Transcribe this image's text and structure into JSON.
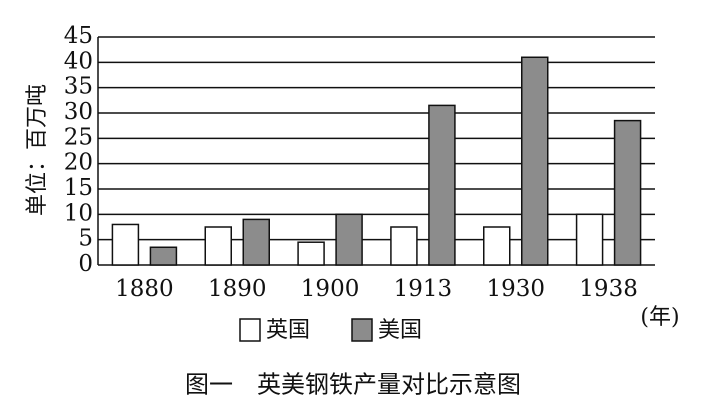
{
  "chart_data": {
    "type": "bar",
    "y_label": "单位：百万吨",
    "x_unit": "(年)",
    "caption": "图一　英美钢铁产量对比示意图",
    "categories": [
      "1880",
      "1890",
      "1900",
      "1913",
      "1930",
      "1938"
    ],
    "series": [
      {
        "name": "英国",
        "color": "#ffffff",
        "values": [
          8,
          7.5,
          4.5,
          7.5,
          7.5,
          10
        ]
      },
      {
        "name": "美国",
        "color": "#8c8c8c",
        "values": [
          3.5,
          9,
          10,
          31.5,
          41,
          28.5
        ]
      }
    ],
    "ylim": [
      0,
      45
    ],
    "yticks": [
      0,
      5,
      10,
      15,
      20,
      25,
      30,
      35,
      40,
      45
    ],
    "grid": true
  }
}
